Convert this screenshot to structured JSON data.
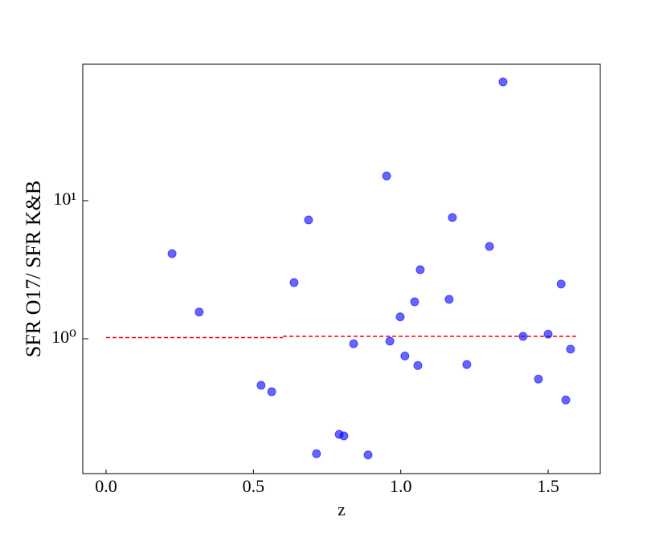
{
  "chart_data": {
    "type": "scatter",
    "xlabel": "z",
    "ylabel": "SFR O17/ SFR K&B",
    "xlim": [
      -0.079,
      1.677
    ],
    "xticks": [
      {
        "value": 0,
        "label": "0.0"
      },
      0.5,
      {
        "value": 1,
        "label": "1.0"
      },
      1.5
    ],
    "ylim": [
      0.1055,
      97.3
    ],
    "ylog": true,
    "yticks": [
      {
        "value": 1,
        "label": "10⁰"
      },
      {
        "value": 10,
        "label": "10¹"
      }
    ],
    "series": [
      {
        "color": "#0000ff",
        "alpha": 0.6,
        "x": [
          0.224,
          0.316,
          0.526,
          0.562,
          0.638,
          0.687,
          0.714,
          0.791,
          0.807,
          0.84,
          0.889,
          0.952,
          0.963,
          0.998,
          1.014,
          1.047,
          1.058,
          1.066,
          1.164,
          1.175,
          1.224,
          1.301,
          1.347,
          1.415,
          1.467,
          1.5,
          1.544,
          1.56,
          1.576
        ],
        "values": [
          4.13,
          1.56,
          0.46,
          0.413,
          2.55,
          7.25,
          0.147,
          0.203,
          0.198,
          0.92,
          0.144,
          15.1,
          0.96,
          1.44,
          0.75,
          1.85,
          0.64,
          3.16,
          1.93,
          7.55,
          0.65,
          4.66,
          72.5,
          1.04,
          0.51,
          1.08,
          2.49,
          0.36,
          0.84
        ]
      }
    ],
    "lines": [
      {
        "color": "#ff0000",
        "dashed": true,
        "x": [
          0,
          0.6
        ],
        "values": [
          1.02,
          1.02
        ]
      },
      {
        "color": "#ff0000",
        "dashed": true,
        "x": [
          0.6,
          1.6
        ],
        "values": [
          1.04,
          1.04
        ]
      }
    ]
  }
}
